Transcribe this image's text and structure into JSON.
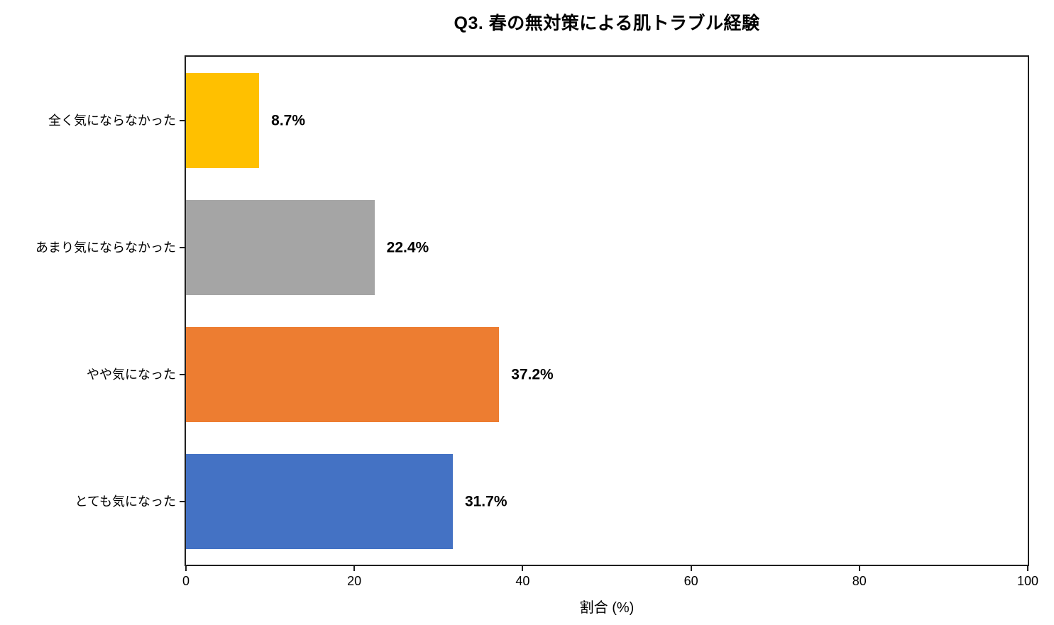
{
  "page": {
    "background": "#ffffff",
    "text_color": "#000000",
    "axis_color": "#1f1f1f"
  },
  "chart_data": {
    "type": "bar",
    "orientation": "horizontal",
    "title": "Q3. 春の無対策による肌トラブル経験",
    "xlabel": "割合 (%)",
    "ylabel": "",
    "categories": [
      "全く気にならなかった",
      "あまり気にならなかった",
      "やや気になった",
      "とても気になった"
    ],
    "values": [
      8.7,
      22.4,
      37.2,
      31.7
    ],
    "value_labels": [
      "8.7%",
      "22.4%",
      "37.2%",
      "31.7%"
    ],
    "bar_colors": [
      "#FFC000",
      "#A5A5A5",
      "#ED7D31",
      "#4472C4"
    ],
    "xlim": [
      0,
      100
    ],
    "xticks": [
      0,
      20,
      40,
      60,
      80,
      100
    ],
    "grid": false,
    "legend": "none",
    "frame": "full-box"
  }
}
